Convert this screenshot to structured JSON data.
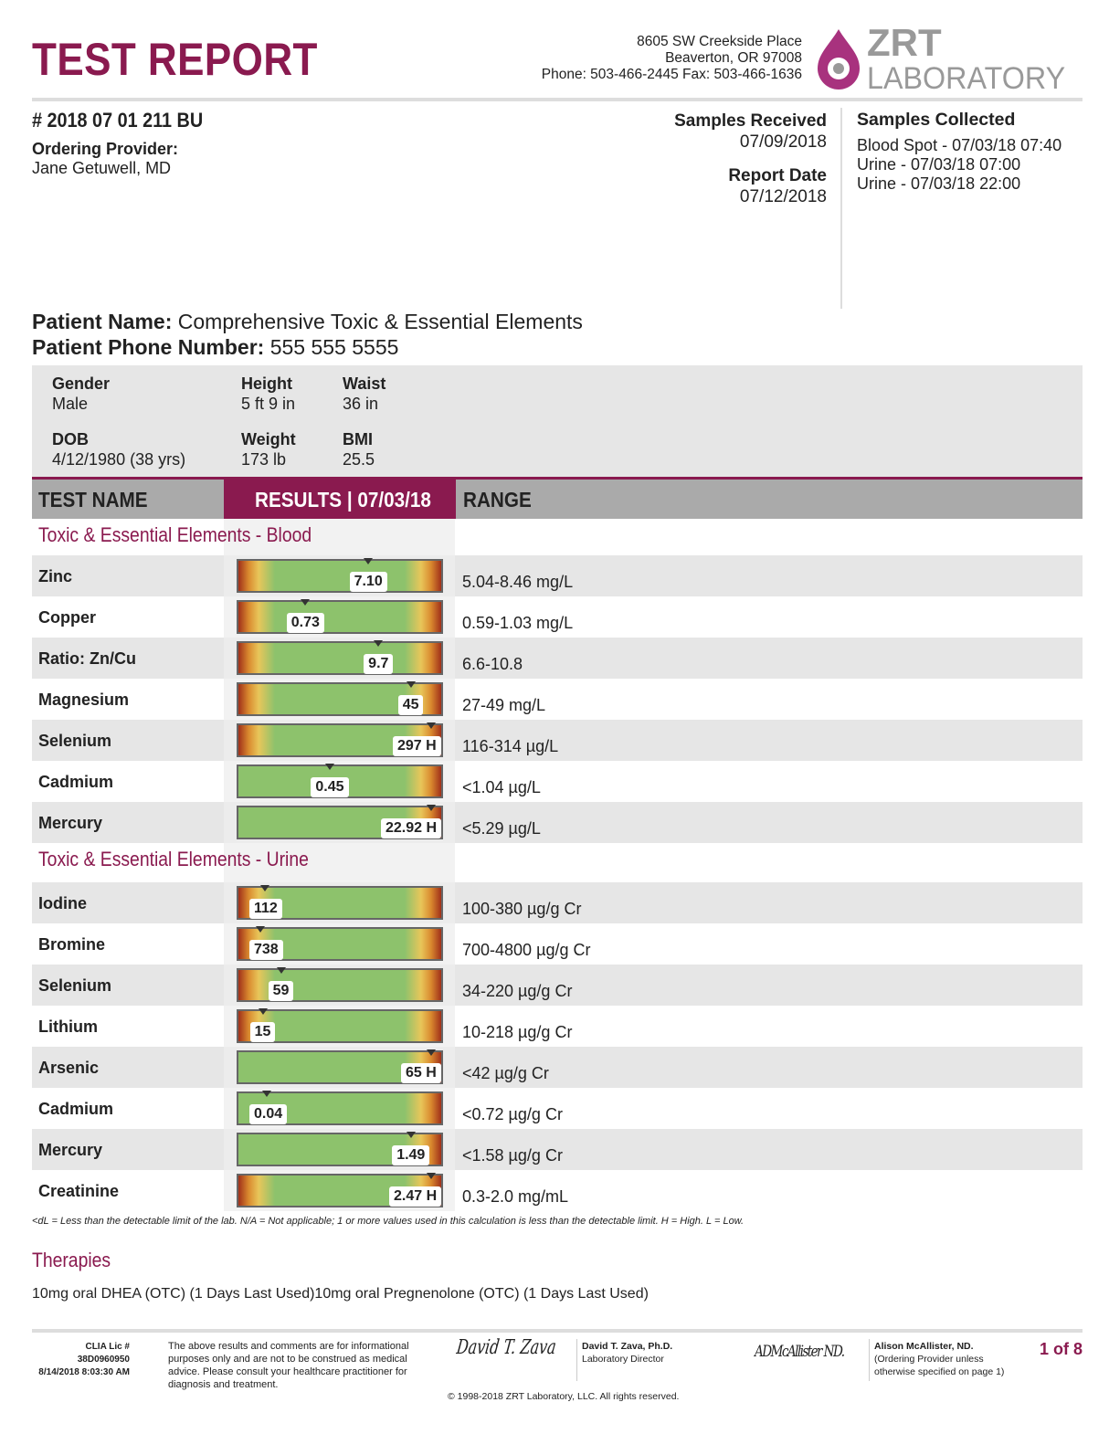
{
  "header": {
    "title": "TEST REPORT",
    "address": [
      "8605 SW Creekside Place",
      "Beaverton, OR 97008",
      "Phone: 503-466-2445 Fax: 503-466-1636"
    ],
    "logo_text": [
      "ZRT",
      "LABORATORY"
    ]
  },
  "report": {
    "id": "# 2018 07 01 211 BU",
    "ordering_provider_label": "Ordering Provider:",
    "ordering_provider": "Jane Getuwell, MD",
    "samples_received_label": "Samples Received",
    "samples_received": "07/09/2018",
    "report_date_label": "Report Date",
    "report_date": "07/12/2018",
    "samples_collected_label": "Samples Collected",
    "samples_collected": [
      "Blood Spot - 07/03/18 07:40",
      "Urine - 07/03/18 07:00",
      "Urine - 07/03/18 22:00"
    ]
  },
  "patient": {
    "name_label": "Patient Name:",
    "name": "Comprehensive Toxic & Essential Elements",
    "phone_label": "Patient Phone Number:",
    "phone": "555 555 5555",
    "fields": {
      "gender_label": "Gender",
      "gender": "Male",
      "height_label": "Height",
      "height": "5 ft 9 in",
      "waist_label": "Waist",
      "waist": "36 in",
      "dob_label": "DOB",
      "dob": "4/12/1980 (38 yrs)",
      "weight_label": "Weight",
      "weight": "173 lb",
      "bmi_label": "BMI",
      "bmi": "25.5"
    }
  },
  "table": {
    "col_test": "TEST NAME",
    "col_results": "RESULTS | 07/03/18",
    "col_range": "RANGE",
    "sections": [
      {
        "title": "Toxic & Essential Elements - Blood",
        "rows": [
          {
            "name": "Zinc",
            "value": "7.10",
            "range": "5.04-8.46 mg/L",
            "marker_pct": 64,
            "low_zone": true
          },
          {
            "name": "Copper",
            "value": "0.73",
            "range": "0.59-1.03 mg/L",
            "marker_pct": 33,
            "low_zone": true
          },
          {
            "name": "Ratio: Zn/Cu",
            "value": "9.7",
            "range": "6.6-10.8",
            "marker_pct": 69,
            "low_zone": true
          },
          {
            "name": "Magnesium",
            "value": "45",
            "range": "27-49 mg/L",
            "marker_pct": 85,
            "low_zone": true
          },
          {
            "name": "Selenium",
            "value": "297 H",
            "range": "116-314 µg/L",
            "marker_pct": 95,
            "low_zone": true
          },
          {
            "name": "Cadmium",
            "value": "0.45",
            "range": "<1.04 µg/L",
            "marker_pct": 45,
            "low_zone": false
          },
          {
            "name": "Mercury",
            "value": "22.92 H",
            "range": "<5.29 µg/L",
            "marker_pct": 95,
            "low_zone": false
          }
        ]
      },
      {
        "title": "Toxic & Essential Elements - Urine",
        "rows": [
          {
            "name": "Iodine",
            "value": "112",
            "range": "100-380 µg/g Cr",
            "marker_pct": 13,
            "low_zone": true
          },
          {
            "name": "Bromine",
            "value": "738",
            "range": "700-4800 µg/g Cr",
            "marker_pct": 11,
            "low_zone": true
          },
          {
            "name": "Selenium",
            "value": "59",
            "range": "34-220 µg/g Cr",
            "marker_pct": 21,
            "low_zone": true
          },
          {
            "name": "Lithium",
            "value": "15",
            "range": "10-218 µg/g Cr",
            "marker_pct": 12,
            "low_zone": true
          },
          {
            "name": "Arsenic",
            "value": "65 H",
            "range": "<42 µg/g Cr",
            "marker_pct": 95,
            "low_zone": false
          },
          {
            "name": "Cadmium",
            "value": "0.04",
            "range": "<0.72 µg/g Cr",
            "marker_pct": 14,
            "low_zone": false
          },
          {
            "name": "Mercury",
            "value": "1.49",
            "range": "<1.58 µg/g Cr",
            "marker_pct": 85,
            "low_zone": false
          },
          {
            "name": "Creatinine",
            "value": "2.47 H",
            "range": "0.3-2.0 mg/mL",
            "marker_pct": 95,
            "low_zone": true
          }
        ]
      }
    ]
  },
  "legend": "<dL = Less than the detectable limit of the lab.  N/A = Not applicable; 1 or more values used in this calculation is less than the detectable limit.  H = High.  L = Low.",
  "therapies": {
    "title": "Therapies",
    "text": "10mg oral DHEA (OTC) (1 Days Last Used)10mg oral Pregnenolone (OTC) (1 Days Last Used)"
  },
  "footer": {
    "clia": "CLIA Lic # 38D0960950",
    "printed": "8/14/2018 8:03:30 AM",
    "disclaimer": "The above results and comments are for informational purposes only and are not to be construed as medical advice. Please consult your healthcare practitioner for diagnosis and treatment.",
    "sig1_name": "David T. Zava, Ph.D.",
    "sig1_title": "Laboratory Director",
    "sig1_script": "David T. Zava",
    "sig2_name": "Alison McAllister, ND.",
    "sig2_title": "(Ordering Provider unless otherwise specified on page 1)",
    "sig2_script": "ADMcAllister ND.",
    "copyright": "© 1998-2018 ZRT Laboratory, LLC. All rights reserved.",
    "page": "1 of 8"
  },
  "colors": {
    "brand": "#8a1a4f",
    "header_gray": "#aaaaaa",
    "bar_green": "#8dc26c",
    "bar_yellow": "#e8c65a",
    "bar_red": "#a0301a"
  }
}
